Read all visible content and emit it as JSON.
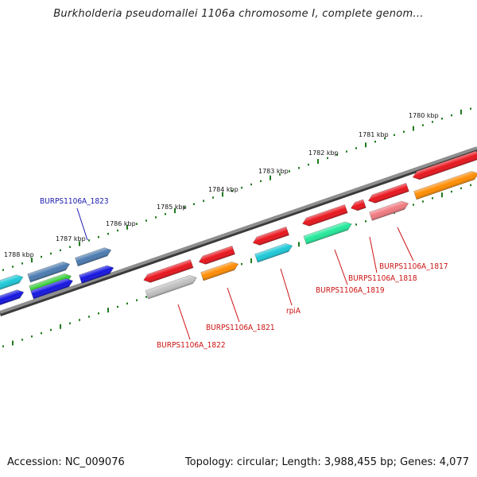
{
  "title": "Burkholderia pseudomallei 1106a chromosome I, complete genom...",
  "footer": {
    "accession": "Accession: NC_009076",
    "summary": "Topology: circular; Length: 3,988,455 bp; Genes: 4,077"
  },
  "scale_labels": [
    "1780 kbp",
    "1781 kbp",
    "1782 kbp",
    "1783 kbp",
    "1784 kbp",
    "1785 kbp",
    "1786 kbp",
    "1787 kbp",
    "1788 kbp"
  ],
  "gene_labels": {
    "burps_1823": "BURPS1106A_1823",
    "burps_1817": "BURPS1106A_1817",
    "burps_1818": "BURPS1106A_1818",
    "burps_1819": "BURPS1106A_1819",
    "rpia": "rpiA",
    "burps_1821": "BURPS1106A_1821",
    "burps_1822": "BURPS1106A_1822"
  },
  "colors": {
    "backbone": "#7a7a7a",
    "tick": "#1f7a1f",
    "forward_label": "#1a1ab0",
    "reverse_label": "#cc1111",
    "red": "#e8141c",
    "orange": "#ff8c00",
    "cyan": "#1cc8d8",
    "blue": "#1414e0",
    "steelblue": "#4a7ab0",
    "green": "#33cc33",
    "mint": "#22e89a",
    "pink": "#f07a80",
    "gray": "#c0c0c0"
  }
}
